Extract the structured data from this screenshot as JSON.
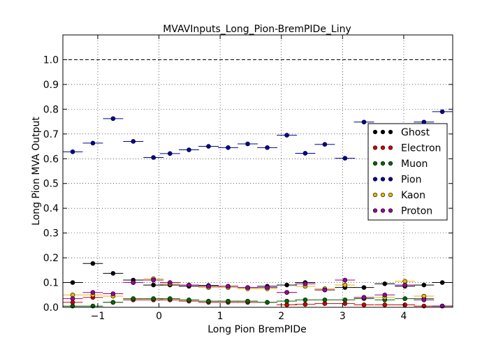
{
  "chart_data": {
    "type": "scatter",
    "title": "MVAVInputs_Long_Pion-BremPIDe_Liny",
    "xlabel": "Long Pion BremPIDe",
    "ylabel": "Long Pion MVA Output",
    "xlim": [
      -1.57,
      4.8
    ],
    "ylim": [
      0.0,
      1.1
    ],
    "xticks": [
      -1,
      0,
      1,
      2,
      3,
      4
    ],
    "xtick_labels": [
      "−1",
      "0",
      "1",
      "2",
      "3",
      "4"
    ],
    "yticks": [
      0.0,
      0.1,
      0.2,
      0.3,
      0.4,
      0.5,
      0.6,
      0.7,
      0.8,
      0.9,
      1.0
    ],
    "ytick_labels": [
      "0.0",
      "0.1",
      "0.2",
      "0.3",
      "0.4",
      "0.5",
      "0.6",
      "0.7",
      "0.8",
      "0.9",
      "1.0"
    ],
    "grid": true,
    "reference_line": 1.0,
    "legend_position": "center-right",
    "bin_half_width": 0.165,
    "x": [
      -1.41,
      -1.08,
      -0.75,
      -0.42,
      -0.09,
      0.18,
      0.49,
      0.81,
      1.13,
      1.45,
      1.77,
      2.09,
      2.39,
      2.71,
      3.04,
      3.35,
      3.69,
      4.02,
      4.33,
      4.63
    ],
    "series": [
      {
        "name": "Ghost",
        "color": "#000000",
        "values": [
          0.1,
          0.177,
          0.137,
          0.11,
          0.09,
          0.09,
          0.085,
          0.088,
          0.085,
          0.08,
          0.085,
          0.09,
          0.1,
          0.07,
          0.08,
          0.08,
          0.095,
          0.085,
          0.09,
          0.1
        ]
      },
      {
        "name": "Electron",
        "color": "#cc0000",
        "values": [
          0.02,
          0.04,
          0.02,
          0.03,
          0.03,
          0.03,
          0.025,
          0.02,
          0.02,
          0.02,
          0.02,
          0.01,
          0.012,
          0.015,
          0.015,
          0.01,
          0.01,
          0.01,
          0.005,
          0.005
        ]
      },
      {
        "name": "Muon",
        "color": "#006600",
        "values": [
          0.005,
          0.005,
          0.02,
          0.035,
          0.035,
          0.035,
          0.03,
          0.025,
          0.025,
          0.025,
          0.02,
          0.025,
          0.03,
          0.03,
          0.03,
          0.035,
          0.03,
          0.035,
          0.035,
          0.005
        ]
      },
      {
        "name": "Pion",
        "color": "#000099",
        "values": [
          0.628,
          0.663,
          0.762,
          0.67,
          0.605,
          0.621,
          0.636,
          0.65,
          0.645,
          0.66,
          0.645,
          0.695,
          0.622,
          0.658,
          0.602,
          0.748,
          0.705,
          0.72,
          0.748,
          0.79
        ]
      },
      {
        "name": "Kaon",
        "color": "#e6b800",
        "values": [
          0.05,
          0.05,
          0.045,
          0.1,
          0.115,
          0.095,
          0.09,
          0.08,
          0.08,
          0.075,
          0.075,
          0.06,
          0.085,
          0.075,
          0.09,
          0.04,
          0.04,
          0.105,
          0.045,
          0.005
        ]
      },
      {
        "name": "Proton",
        "color": "#990099",
        "values": [
          0.035,
          0.06,
          0.055,
          0.1,
          0.11,
          0.1,
          0.09,
          0.085,
          0.085,
          0.08,
          0.08,
          0.06,
          0.095,
          0.07,
          0.11,
          0.04,
          0.05,
          0.09,
          0.03,
          0.005
        ]
      }
    ]
  }
}
